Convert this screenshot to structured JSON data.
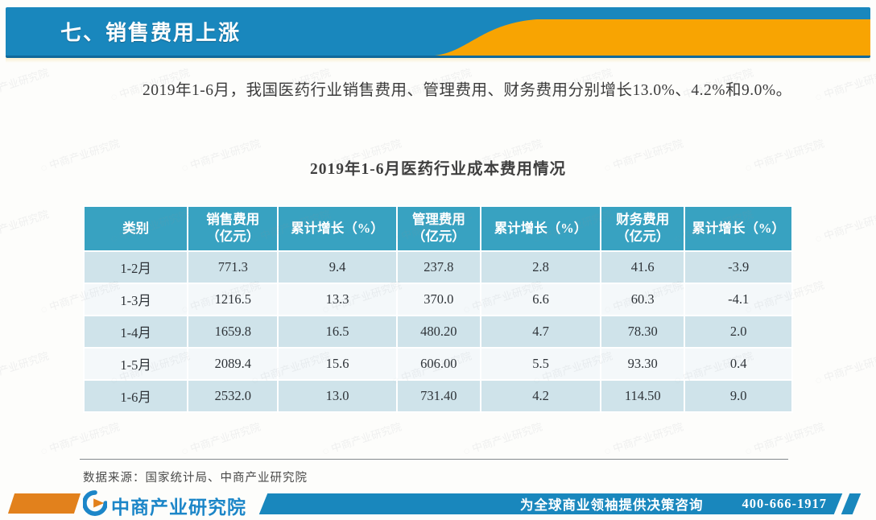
{
  "header": {
    "title": "七、销售费用上涨",
    "bar_color": "#1987bd",
    "swoosh_color": "#f8a402"
  },
  "body": {
    "paragraph": "2019年1-6月，我国医药行业销售费用、管理费用、财务费用分别增长13.0%、4.2%和9.0%。"
  },
  "table": {
    "title": "2019年1-6月医药行业成本费用情况",
    "header_bg": "#38a2c1",
    "row_alt_bg": "#cfe3ea",
    "columns": [
      {
        "line1": "类别",
        "line2": ""
      },
      {
        "line1": "销售费用",
        "line2": "（亿元）"
      },
      {
        "line1": "累计增长（%）",
        "line2": ""
      },
      {
        "line1": "管理费用",
        "line2": "（亿元）"
      },
      {
        "line1": "累计增长（%）",
        "line2": ""
      },
      {
        "line1": "财务费用",
        "line2": "（亿元）"
      },
      {
        "line1": "累计增长（%）",
        "line2": ""
      }
    ],
    "rows": [
      [
        "1-2月",
        "771.3",
        "9.4",
        "237.8",
        "2.8",
        "41.6",
        "-3.9"
      ],
      [
        "1-3月",
        "1216.5",
        "13.3",
        "370.0",
        "6.6",
        "60.3",
        "-4.1"
      ],
      [
        "1-4月",
        "1659.8",
        "16.5",
        "480.20",
        "4.7",
        "78.30",
        "2.0"
      ],
      [
        "1-5月",
        "2089.4",
        "15.6",
        "606.00",
        "5.5",
        "93.30",
        "0.4"
      ],
      [
        "1-6月",
        "2532.0",
        "13.0",
        "731.40",
        "4.2",
        "114.50",
        "9.0"
      ]
    ]
  },
  "source": {
    "label": "数据来源：国家统计局、中商产业研究院"
  },
  "footer": {
    "logo_text": "中商产业研究院",
    "slogan": "为全球商业领袖提供决策咨询",
    "phone": "400-666-1917",
    "bar_color": "#1987bd",
    "accent_color": "#e2811c"
  },
  "watermark": {
    "text": "中商产业研究院"
  },
  "chart_data": {
    "type": "table",
    "title": "2019年1-6月医药行业成本费用情况",
    "categories": [
      "1-2月",
      "1-3月",
      "1-4月",
      "1-5月",
      "1-6月"
    ],
    "series": [
      {
        "name": "销售费用（亿元）",
        "values": [
          771.3,
          1216.5,
          1659.8,
          2089.4,
          2532.0
        ]
      },
      {
        "name": "销售费用累计增长（%）",
        "values": [
          9.4,
          13.3,
          16.5,
          15.6,
          13.0
        ]
      },
      {
        "name": "管理费用（亿元）",
        "values": [
          237.8,
          370.0,
          480.2,
          606.0,
          731.4
        ]
      },
      {
        "name": "管理费用累计增长（%）",
        "values": [
          2.8,
          6.6,
          4.7,
          5.5,
          4.2
        ]
      },
      {
        "name": "财务费用（亿元）",
        "values": [
          41.6,
          60.3,
          78.3,
          93.3,
          114.5
        ]
      },
      {
        "name": "财务费用累计增长（%）",
        "values": [
          -3.9,
          -4.1,
          2.0,
          0.4,
          9.0
        ]
      }
    ]
  }
}
